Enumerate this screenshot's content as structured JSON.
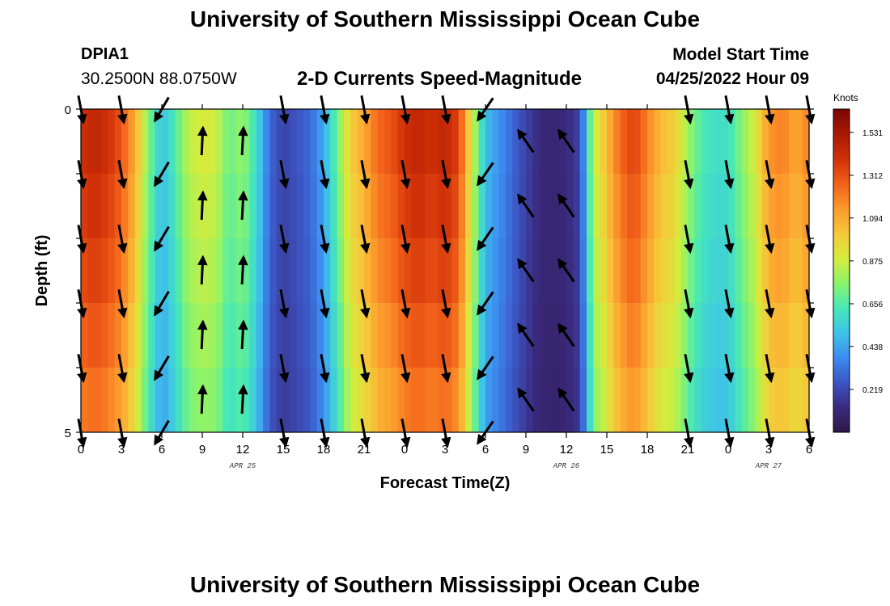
{
  "header": {
    "title": "University of Southern Mississippi Ocean Cube",
    "station": "DPIA1",
    "coordinates": "30.2500N  88.0750W",
    "subtitle": "2-D Currents Speed-Magnitude",
    "model_start_label": "Model Start Time",
    "model_start_value": "04/25/2022 Hour 09"
  },
  "footer": {
    "title": "University of Southern Mississippi Ocean Cube"
  },
  "chart_data": {
    "type": "heatmap",
    "xlabel": "Forecast Time(Z)",
    "ylabel": "Depth (ft)",
    "x_hours_from_apr25_00z": [
      0,
      3,
      6,
      9,
      12,
      15,
      18,
      21,
      24,
      27,
      30,
      33,
      36,
      39,
      42,
      45,
      48,
      51,
      54
    ],
    "x_tick_labels": [
      "0",
      "3",
      "6",
      "9",
      "12",
      "15",
      "18",
      "21",
      "0",
      "3",
      "6",
      "9",
      "12",
      "15",
      "18",
      "21",
      "0",
      "3",
      "6"
    ],
    "date_labels": [
      {
        "text": "APR 25",
        "hour": 12
      },
      {
        "text": "APR 26",
        "hour": 36
      },
      {
        "text": "APR 27",
        "hour": 51
      }
    ],
    "y_tick_labels": [
      "0",
      "5"
    ],
    "ylim": [
      0,
      5
    ],
    "colorbar": {
      "label": "Knots",
      "ticks": [
        0.219,
        0.438,
        0.656,
        0.875,
        1.094,
        1.312,
        1.531
      ],
      "range": [
        0.0,
        1.65
      ],
      "colors": [
        "#2d1848",
        "#3a2a7e",
        "#3c55c4",
        "#3c8cf0",
        "#3ec3e8",
        "#45e8b8",
        "#8cf46a",
        "#d5ec3c",
        "#f6c83a",
        "#fc9a2c",
        "#f2601a",
        "#d03008",
        "#a81a04",
        "#7a0603"
      ]
    },
    "speed_profile_hours": [
      0,
      1,
      2,
      3,
      4,
      5,
      6,
      7,
      8,
      9,
      10,
      11,
      12,
      13,
      14,
      15,
      16,
      17,
      18,
      19,
      20,
      21,
      22,
      23,
      24,
      25,
      26,
      27,
      28,
      29,
      30,
      31,
      32,
      33,
      34,
      35,
      36,
      37,
      38,
      39,
      40,
      41,
      42,
      43,
      44,
      45,
      46,
      47,
      48,
      49,
      50,
      51,
      52,
      53,
      54
    ],
    "speed_profile_knots": [
      1.4,
      1.45,
      1.4,
      1.3,
      1.1,
      0.75,
      0.5,
      0.65,
      0.85,
      0.9,
      0.88,
      0.7,
      0.78,
      0.6,
      0.3,
      0.2,
      0.25,
      0.3,
      0.45,
      0.7,
      1.0,
      1.1,
      1.25,
      1.3,
      1.4,
      1.45,
      1.4,
      1.45,
      1.35,
      0.9,
      0.5,
      0.4,
      0.3,
      0.2,
      0.12,
      0.1,
      0.12,
      0.2,
      0.85,
      1.05,
      1.25,
      1.35,
      1.2,
      1.05,
      1.0,
      0.8,
      0.65,
      0.6,
      0.6,
      0.75,
      0.9,
      1.15,
      1.2,
      1.1,
      1.2
    ],
    "arrows": {
      "even_depth_hours": [
        0,
        3,
        6,
        15,
        18,
        21,
        24,
        27,
        30,
        45,
        48,
        51,
        54
      ],
      "odd_depth_hours": [
        9,
        12,
        33,
        36
      ],
      "depths_ft": [
        0,
        0.5,
        1,
        1.5,
        2,
        2.5,
        3,
        3.5,
        4,
        4.5,
        5
      ]
    }
  }
}
